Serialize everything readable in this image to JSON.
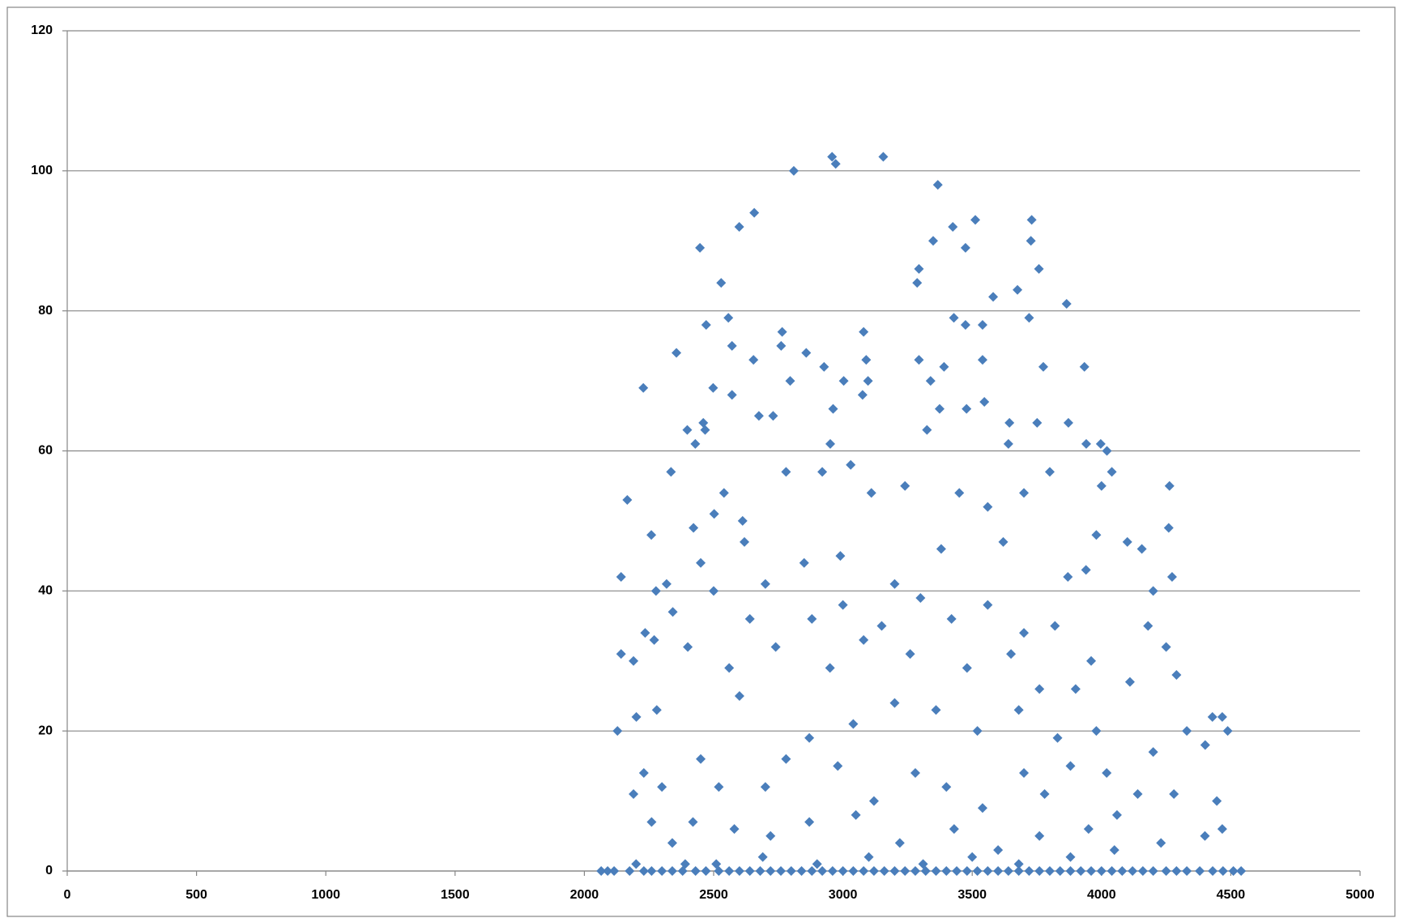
{
  "chart_data": {
    "type": "scatter",
    "color": "#4a7ebb",
    "grid": true,
    "xlim": [
      0,
      5000
    ],
    "xticks": [
      0,
      500,
      1000,
      1500,
      2000,
      2500,
      3000,
      3500,
      4000,
      4500,
      5000
    ],
    "ylim": [
      0,
      120
    ],
    "yticks": [
      0,
      20,
      40,
      60,
      80,
      100,
      120
    ],
    "x": [
      2810,
      2958,
      2972,
      3156,
      3367,
      2447,
      2599,
      2657,
      2529,
      3349,
      3425,
      3512,
      3474,
      3730,
      3727,
      3758,
      3865,
      3287,
      3294,
      3581,
      3675,
      2557,
      2471,
      2765,
      3080,
      3429,
      3474,
      3540,
      3720,
      2571,
      2761,
      2356,
      2858,
      2654,
      3090,
      3294,
      3540,
      3934,
      3775,
      3391,
      2927,
      2228,
      2498,
      2796,
      3003,
      3097,
      2571,
      3076,
      3339,
      2675,
      2730,
      2460,
      2962,
      3374,
      3478,
      3547,
      3644,
      3751,
      3872,
      2398,
      2467,
      3325,
      2429,
      2951,
      3640,
      3941,
      3997,
      4021,
      2166,
      2259,
      2335,
      2502,
      2540,
      2612,
      2619,
      4263,
      4260,
      4156,
      4273,
      2142,
      2142,
      2128,
      2190,
      2201,
      2277,
      2318,
      2422,
      2235,
      2270,
      2342,
      2450,
      4429,
      4488,
      4467,
      4401,
      4446,
      4467,
      2780,
      2920,
      3030,
      3110,
      3240,
      3450,
      3560,
      3700,
      3800,
      4000,
      4040,
      4100,
      3980,
      2990,
      2850,
      3200,
      3380,
      3620,
      3870,
      3940,
      4200,
      2700,
      2640,
      2500,
      2880,
      3000,
      3150,
      3300,
      3420,
      3560,
      3700,
      3820,
      3960,
      4180,
      4250,
      2560,
      2740,
      2950,
      3080,
      3260,
      3480,
      3650,
      3760,
      3900,
      4110,
      4290,
      2280,
      2400,
      2600,
      2870,
      3040,
      3200,
      3360,
      3520,
      3680,
      3830,
      3980,
      4200,
      4330,
      2230,
      2300,
      2450,
      2520,
      2700,
      2780,
      2980,
      3120,
      3280,
      3400,
      3540,
      3700,
      3780,
      3880,
      4020,
      4140,
      4280,
      2190,
      2260,
      2340,
      2420,
      2580,
      2720,
      2870,
      3050,
      3220,
      3430,
      3600,
      3760,
      3950,
      4060,
      4230,
      4400,
      2200,
      2390,
      2510,
      2690,
      2900,
      3100,
      3310,
      3500,
      3680,
      3880,
      4050,
      2065,
      2090,
      2115,
      2175,
      2230,
      2260,
      2300,
      2340,
      2380,
      2430,
      2470,
      2520,
      2560,
      2600,
      2640,
      2680,
      2720,
      2760,
      2800,
      2840,
      2880,
      2920,
      2960,
      3000,
      3040,
      3080,
      3120,
      3160,
      3200,
      3240,
      3280,
      3320,
      3360,
      3400,
      3440,
      3480,
      3520,
      3560,
      3600,
      3640,
      3680,
      3720,
      3760,
      3800,
      3840,
      3880,
      3920,
      3960,
      4000,
      4040,
      4080,
      4120,
      4160,
      4200,
      4250,
      4290,
      4330,
      4380,
      4430,
      4470,
      4510,
      4540
    ],
    "values": [
      100,
      102,
      101,
      102,
      98,
      89,
      92,
      94,
      84,
      90,
      92,
      93,
      89,
      93,
      90,
      86,
      81,
      84,
      86,
      82,
      83,
      79,
      78,
      77,
      77,
      79,
      78,
      78,
      79,
      75,
      75,
      74,
      74,
      73,
      73,
      73,
      73,
      72,
      72,
      72,
      72,
      69,
      69,
      70,
      70,
      70,
      68,
      68,
      70,
      65,
      65,
      64,
      66,
      66,
      66,
      67,
      64,
      64,
      64,
      63,
      63,
      63,
      61,
      61,
      61,
      61,
      61,
      60,
      53,
      48,
      57,
      51,
      54,
      50,
      47,
      55,
      49,
      46,
      42,
      42,
      31,
      20,
      30,
      22,
      40,
      41,
      49,
      34,
      33,
      37,
      44,
      22,
      20,
      22,
      18,
      10,
      6,
      57,
      57,
      58,
      54,
      55,
      54,
      52,
      54,
      57,
      55,
      57,
      47,
      48,
      45,
      44,
      41,
      46,
      47,
      42,
      43,
      40,
      41,
      36,
      40,
      36,
      38,
      35,
      39,
      36,
      38,
      34,
      35,
      30,
      35,
      32,
      29,
      32,
      29,
      33,
      31,
      29,
      31,
      26,
      26,
      27,
      28,
      23,
      32,
      25,
      19,
      21,
      24,
      23,
      20,
      23,
      19,
      20,
      17,
      20,
      14,
      12,
      16,
      12,
      12,
      16,
      15,
      10,
      14,
      12,
      9,
      14,
      11,
      15,
      14,
      11,
      11,
      11,
      7,
      4,
      7,
      6,
      5,
      7,
      8,
      4,
      6,
      3,
      5,
      6,
      8,
      4,
      5,
      1,
      1,
      1,
      2,
      1,
      2,
      1,
      2,
      1,
      2,
      3,
      0,
      0,
      0,
      0,
      0,
      0,
      0,
      0,
      0,
      0,
      0,
      0,
      0,
      0,
      0,
      0,
      0,
      0,
      0,
      0,
      0,
      0,
      0,
      0,
      0,
      0,
      0,
      0,
      0,
      0,
      0,
      0,
      0,
      0,
      0,
      0,
      0,
      0,
      0,
      0,
      0,
      0,
      0,
      0,
      0,
      0,
      0,
      0,
      0,
      0,
      0,
      0,
      0,
      0,
      0,
      0,
      0,
      0,
      0,
      0,
      0,
      0
    ]
  }
}
